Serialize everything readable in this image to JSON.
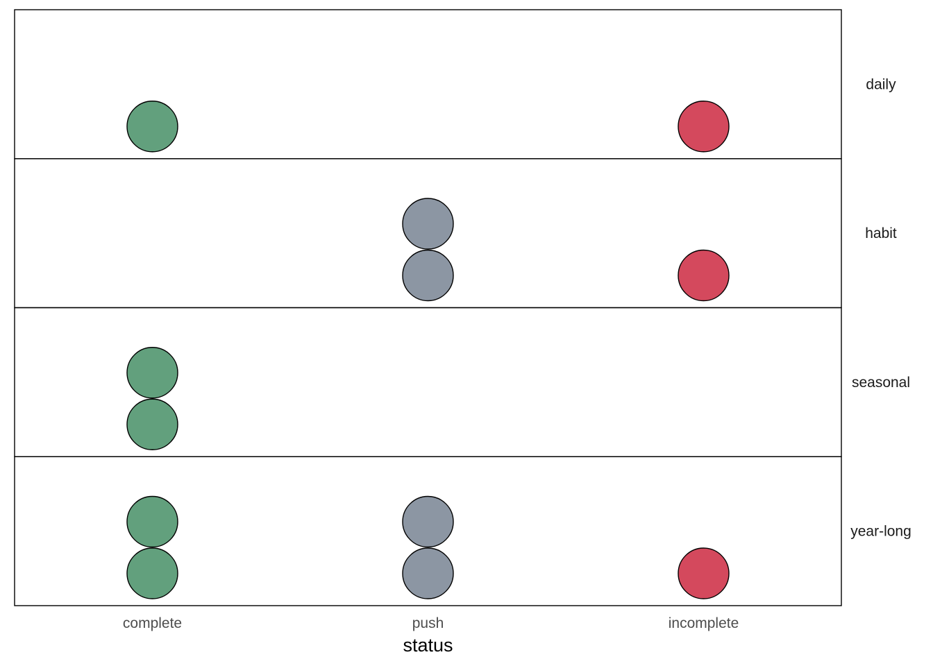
{
  "chart_data": {
    "type": "dotplot",
    "xlabel": "status",
    "categories": [
      "complete",
      "push",
      "incomplete"
    ],
    "facets": [
      "daily",
      "habit",
      "seasonal",
      "year-long"
    ],
    "counts": {
      "daily": [
        1,
        0,
        1
      ],
      "habit": [
        0,
        2,
        1
      ],
      "seasonal": [
        2,
        0,
        0
      ],
      "year-long": [
        2,
        2,
        1
      ]
    },
    "colors": {
      "complete": "#62a07d",
      "push": "#8c96a3",
      "incomplete": "#d4495d"
    },
    "grid": false,
    "legend": "none",
    "facet_labels_position": "right"
  }
}
